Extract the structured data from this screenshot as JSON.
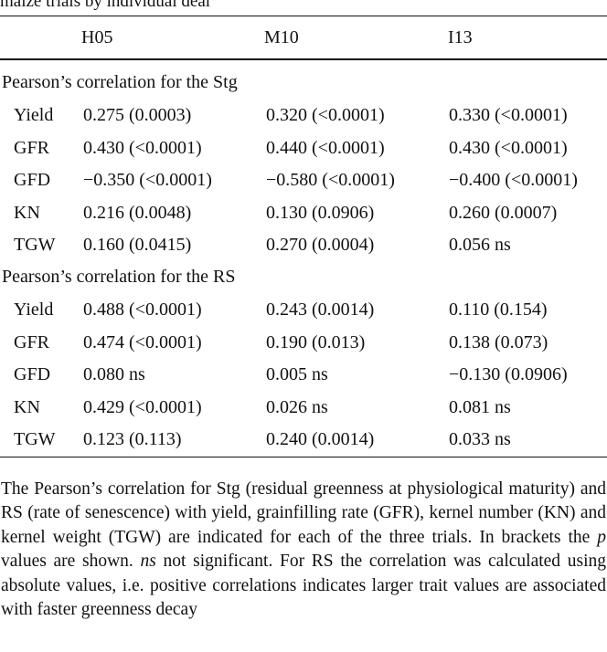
{
  "caption_fragment": "maize trials by individual deal",
  "columns": [
    "H05",
    "M10",
    "I13"
  ],
  "sections": [
    {
      "label": "Pearson’s correlation for the Stg",
      "rows": [
        {
          "trait": "Yield",
          "values": [
            "0.275 (0.0003)",
            "0.320 (<0.0001)",
            "0.330 (<0.0001)"
          ]
        },
        {
          "trait": "GFR",
          "values": [
            "0.430 (<0.0001)",
            "0.440 (<0.0001)",
            "0.430 (<0.0001)"
          ]
        },
        {
          "trait": "GFD",
          "values": [
            "−0.350 (<0.0001)",
            "−0.580 (<0.0001)",
            "−0.400 (<0.0001)"
          ]
        },
        {
          "trait": "KN",
          "values": [
            "0.216 (0.0048)",
            "0.130 (0.0906)",
            "0.260 (0.0007)"
          ]
        },
        {
          "trait": "TGW",
          "values": [
            "0.160 (0.0415)",
            "0.270 (0.0004)",
            "0.056 ns"
          ]
        }
      ]
    },
    {
      "label": "Pearson’s correlation for the RS",
      "rows": [
        {
          "trait": "Yield",
          "values": [
            "0.488 (<0.0001)",
            "0.243 (0.0014)",
            "0.110 (0.154)"
          ]
        },
        {
          "trait": "GFR",
          "values": [
            "0.474 (<0.0001)",
            "0.190 (0.013)",
            "0.138 (0.073)"
          ]
        },
        {
          "trait": "GFD",
          "values": [
            "0.080 ns",
            "0.005 ns",
            "−0.130 (0.0906)"
          ]
        },
        {
          "trait": "KN",
          "values": [
            "0.429 (<0.0001)",
            "0.026 ns",
            "0.081 ns"
          ]
        },
        {
          "trait": "TGW",
          "values": [
            "0.123 (0.113)",
            "0.240 (0.0014)",
            "0.033 ns"
          ]
        }
      ]
    }
  ],
  "footnote": {
    "part1": "The Pearson’s correlation for Stg (residual greenness at physiological maturity) and RS (rate of senescence) with yield, grainfilling rate (GFR), kernel number (KN) and kernel weight (TGW) are indicated for each of the three trials. In brackets the ",
    "p_symbol": "p",
    "part2": " values are shown. ",
    "ns_symbol": "ns",
    "part3": " not significant. For RS the correlation was calculated using absolute values, i.e. positive correlations indicates larger trait values are associated with faster greenness decay"
  }
}
